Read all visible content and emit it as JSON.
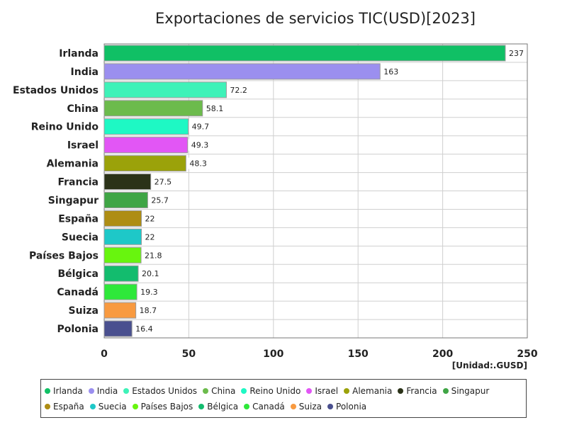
{
  "chart_data": {
    "type": "bar",
    "orientation": "horizontal",
    "title": "Exportaciones de servicios TIC(USD)[2023]",
    "unit_label": "[Unidad:.GUSD]",
    "categories": [
      "Irlanda",
      "India",
      "Estados Unidos",
      "China",
      "Reino Unido",
      "Israel",
      "Alemania",
      "Francia",
      "Singapur",
      "España",
      "Suecia",
      "Países Bajos",
      "Bélgica",
      "Canadá",
      "Suiza",
      "Polonia"
    ],
    "values": [
      237,
      163,
      72.2,
      58.1,
      49.7,
      49.3,
      48.3,
      27.5,
      25.7,
      22,
      22,
      21.8,
      20.1,
      19.3,
      18.7,
      16.4
    ],
    "value_labels": [
      "237",
      "163",
      "72.2",
      "58.1",
      "49.7",
      "49.3",
      "48.3",
      "27.5",
      "25.7",
      "22",
      "22",
      "21.8",
      "20.1",
      "19.3",
      "18.7",
      "16.4"
    ],
    "colors": [
      "#10c065",
      "#9b8fef",
      "#3ef2b8",
      "#6cbb4c",
      "#1ef8c4",
      "#e256f5",
      "#9ba20a",
      "#2b3218",
      "#3fa545",
      "#ae8d14",
      "#1ec8c8",
      "#68f50e",
      "#13bc6e",
      "#2ee83a",
      "#f89a40",
      "#4a508f"
    ],
    "xlim": [
      0,
      250
    ],
    "xticks": [
      "0",
      "50",
      "100",
      "150",
      "200",
      "250"
    ],
    "grid": true,
    "legend_position": "bottom"
  }
}
